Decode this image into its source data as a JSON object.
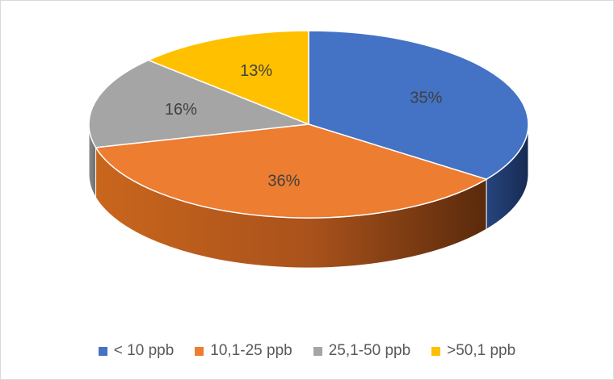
{
  "chart_data": {
    "type": "pie",
    "style": "3d",
    "categories": [
      "< 10 ppb",
      "10,1-25 ppb",
      "25,1-50 ppb",
      ">50,1 ppb"
    ],
    "values": [
      35,
      36,
      16,
      13
    ],
    "labels": [
      "35%",
      "36%",
      "16%",
      "13%"
    ],
    "colors": [
      "#4472c4",
      "#ed7d31",
      "#a5a5a5",
      "#ffc000"
    ],
    "legend_position": "bottom"
  }
}
